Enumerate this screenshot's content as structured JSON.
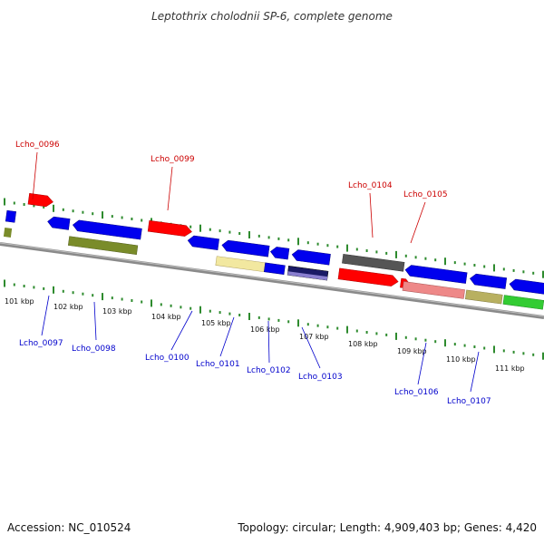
{
  "title": "Leptothrix cholodnii SP-6, complete genome",
  "accession": "Accession: NC_010524",
  "topology": "Topology: circular; Length: 4,909,403 bp; Genes: 4,420",
  "colors": {
    "forward_label": "#cc0000",
    "reverse_label": "#0000cc",
    "tick": "#2e8b2e",
    "backbone": "#888888"
  },
  "scale_ticks": [
    "101 kbp",
    "102 kbp",
    "103 kbp",
    "104 kbp",
    "105 kbp",
    "106 kbp",
    "107 kbp",
    "108 kbp",
    "109 kbp",
    "110 kbp",
    "111 kbp"
  ],
  "forward_labels": [
    "Lcho_0096",
    "Lcho_0099",
    "Lcho_0104",
    "Lcho_0105"
  ],
  "reverse_labels": [
    "Lcho_0097",
    "Lcho_0098",
    "Lcho_0100",
    "Lcho_0101",
    "Lcho_0102",
    "Lcho_0103",
    "Lcho_0106",
    "Lcho_0107"
  ]
}
